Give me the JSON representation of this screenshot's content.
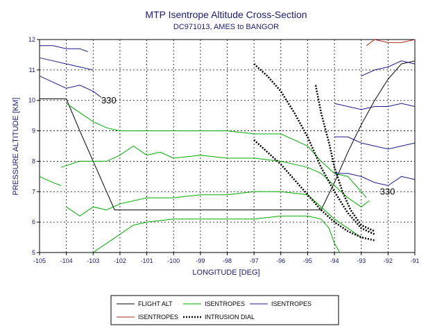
{
  "chart_data": {
    "type": "line",
    "title": "MTP Isentrope Altitude Cross-Section",
    "subtitle": "DC971013, AMES to BANGOR",
    "xlabel": "LONGITUDE [DEG]",
    "ylabel": "PRESSURE ALTITUDE [KM]",
    "xlim": [
      -105,
      -91
    ],
    "ylim": [
      5,
      12
    ],
    "xticks": [
      "-105",
      "-104",
      "-103",
      "-102",
      "-101",
      "-100",
      "-99",
      "-98",
      "-97",
      "-96",
      "-95",
      "-94",
      "-93",
      "-92",
      "-91"
    ],
    "yticks": [
      "5",
      "6",
      "7",
      "8",
      "9",
      "10",
      "11",
      "12"
    ],
    "grid": true,
    "legend_position": "bottom",
    "annotations": [
      {
        "text": "330",
        "x": -102.7,
        "y": 9.9
      },
      {
        "text": "330",
        "x": -92.3,
        "y": 6.9
      }
    ],
    "series": [
      {
        "name": "FLIGHT ALT",
        "color": "#000000",
        "style": "solid",
        "segments": [
          [
            [
              -105,
              10.05
            ],
            [
              -104,
              10.05
            ],
            [
              -103.5,
              9.0
            ],
            [
              -103,
              8.0
            ],
            [
              -102.5,
              7.0
            ],
            [
              -102.2,
              6.4
            ],
            [
              -101,
              6.4
            ],
            [
              -99,
              6.4
            ],
            [
              -97,
              6.4
            ],
            [
              -95,
              6.4
            ],
            [
              -94.5,
              6.4
            ],
            [
              -94,
              7.3
            ],
            [
              -93.5,
              8.3
            ],
            [
              -93,
              9.2
            ],
            [
              -92.5,
              10.0
            ],
            [
              -92,
              10.7
            ],
            [
              -91.5,
              11.2
            ],
            [
              -91,
              11.3
            ]
          ]
        ]
      },
      {
        "name": "ISENTROPES",
        "color": "#00aa00",
        "style": "solid",
        "segments": [
          [
            [
              -104,
              9.9
            ],
            [
              -103.5,
              9.6
            ],
            [
              -103,
              9.3
            ],
            [
              -102.5,
              9.1
            ],
            [
              -102,
              9.0
            ],
            [
              -101,
              9.0
            ],
            [
              -100,
              9.0
            ],
            [
              -99,
              9.0
            ],
            [
              -98,
              9.0
            ],
            [
              -97,
              8.9
            ],
            [
              -96,
              8.9
            ],
            [
              -95.5,
              8.7
            ],
            [
              -95,
              8.5
            ],
            [
              -94.5,
              8.0
            ],
            [
              -94,
              7.6
            ],
            [
              -93.5,
              7.5
            ],
            [
              -93,
              7.0
            ],
            [
              -92.8,
              6.8
            ]
          ],
          [
            [
              -104.2,
              7.8
            ],
            [
              -103.5,
              8.0
            ],
            [
              -103,
              8.0
            ],
            [
              -102.5,
              8.0
            ],
            [
              -102,
              8.2
            ],
            [
              -101.5,
              8.5
            ],
            [
              -101,
              8.2
            ],
            [
              -100.5,
              8.3
            ],
            [
              -100,
              8.1
            ],
            [
              -99,
              8.2
            ],
            [
              -98,
              8.1
            ],
            [
              -97,
              8.1
            ],
            [
              -96,
              8.0
            ],
            [
              -95.5,
              7.9
            ],
            [
              -95,
              7.8
            ],
            [
              -94.5,
              7.6
            ],
            [
              -94,
              7.2
            ],
            [
              -93.5,
              6.8
            ],
            [
              -93,
              6.5
            ],
            [
              -92.7,
              6.7
            ]
          ],
          [
            [
              -105,
              7.5
            ],
            [
              -104.5,
              7.3
            ],
            [
              -104.2,
              7.2
            ]
          ],
          [
            [
              -104,
              6.5
            ],
            [
              -103.5,
              6.2
            ],
            [
              -103,
              6.5
            ],
            [
              -102.5,
              6.4
            ],
            [
              -102,
              6.6
            ],
            [
              -101,
              6.8
            ],
            [
              -100,
              6.8
            ],
            [
              -99,
              6.9
            ],
            [
              -98,
              6.9
            ],
            [
              -97,
              7.0
            ],
            [
              -96,
              7.0
            ],
            [
              -95,
              6.9
            ],
            [
              -94.5,
              6.5
            ],
            [
              -94,
              6.1
            ],
            [
              -93.5,
              5.8
            ],
            [
              -93,
              5.5
            ]
          ],
          [
            [
              -103,
              5.0
            ],
            [
              -102.5,
              5.3
            ],
            [
              -102,
              5.6
            ],
            [
              -101.5,
              5.9
            ],
            [
              -101,
              6.0
            ],
            [
              -100,
              6.1
            ],
            [
              -99,
              6.1
            ],
            [
              -98,
              6.1
            ],
            [
              -97,
              6.1
            ],
            [
              -96,
              6.2
            ],
            [
              -95,
              6.2
            ],
            [
              -94.5,
              6.1
            ],
            [
              -94.2,
              5.8
            ],
            [
              -94,
              5.3
            ],
            [
              -93.8,
              5.0
            ]
          ]
        ]
      },
      {
        "name": "ISENTROPES",
        "color": "#1a1a8c",
        "style": "solid",
        "segments": [
          [
            [
              -105,
              11.8
            ],
            [
              -104.5,
              11.8
            ],
            [
              -104,
              11.7
            ],
            [
              -103.5,
              11.7
            ],
            [
              -103.2,
              11.6
            ]
          ],
          [
            [
              -105,
              11.4
            ],
            [
              -104.5,
              11.3
            ],
            [
              -104,
              11.2
            ],
            [
              -103.5,
              11.1
            ],
            [
              -103,
              11.0
            ]
          ],
          [
            [
              -105,
              10.8
            ],
            [
              -104.5,
              10.6
            ],
            [
              -104,
              10.4
            ],
            [
              -103.5,
              10.5
            ],
            [
              -103,
              10.3
            ],
            [
              -102.7,
              10.1
            ]
          ],
          [
            [
              -93,
              10.8
            ],
            [
              -92.5,
              11.0
            ],
            [
              -92,
              11.1
            ],
            [
              -91.5,
              11.3
            ],
            [
              -91,
              11.2
            ]
          ],
          [
            [
              -94,
              9.9
            ],
            [
              -93.5,
              9.8
            ],
            [
              -93,
              9.7
            ],
            [
              -92.5,
              9.8
            ],
            [
              -92,
              9.8
            ],
            [
              -91.5,
              9.9
            ],
            [
              -91,
              9.8
            ]
          ],
          [
            [
              -94,
              8.8
            ],
            [
              -93.5,
              8.8
            ],
            [
              -93,
              8.6
            ],
            [
              -92.5,
              8.5
            ],
            [
              -92,
              8.4
            ],
            [
              -91.5,
              8.5
            ],
            [
              -91,
              8.6
            ]
          ],
          [
            [
              -94,
              7.6
            ],
            [
              -93.5,
              7.6
            ],
            [
              -93,
              7.5
            ],
            [
              -92.5,
              7.3
            ],
            [
              -92,
              7.2
            ],
            [
              -91.5,
              7.5
            ],
            [
              -91,
              7.4
            ]
          ]
        ]
      },
      {
        "name": "ISENTROPES",
        "color": "#aa2a1a",
        "style": "solid",
        "segments": [
          [
            [
              -92.8,
              11.8
            ],
            [
              -92.5,
              12.0
            ],
            [
              -92,
              11.9
            ],
            [
              -91.5,
              11.9
            ],
            [
              -91,
              12.0
            ]
          ]
        ]
      },
      {
        "name": "INTRUSION DIAL",
        "color": "#000000",
        "style": "dotted",
        "segments": [
          [
            [
              -97,
              11.2
            ],
            [
              -96.5,
              10.8
            ],
            [
              -96,
              10.3
            ],
            [
              -95.5,
              9.6
            ],
            [
              -95,
              8.8
            ],
            [
              -94.5,
              7.8
            ],
            [
              -94,
              7.0
            ],
            [
              -93.5,
              6.3
            ],
            [
              -93,
              5.8
            ],
            [
              -92.5,
              5.6
            ]
          ],
          [
            [
              -97,
              8.7
            ],
            [
              -96.5,
              8.3
            ],
            [
              -96,
              7.9
            ],
            [
              -95.5,
              7.4
            ],
            [
              -95,
              6.9
            ],
            [
              -94.5,
              6.4
            ],
            [
              -94,
              6.0
            ],
            [
              -93.5,
              5.7
            ],
            [
              -93,
              5.5
            ],
            [
              -92.5,
              5.4
            ]
          ],
          [
            [
              -94.7,
              10.5
            ],
            [
              -94.5,
              9.6
            ],
            [
              -94.2,
              8.6
            ],
            [
              -94,
              7.8
            ],
            [
              -93.7,
              7.0
            ],
            [
              -93.4,
              6.4
            ],
            [
              -93,
              5.9
            ],
            [
              -92.5,
              5.7
            ]
          ]
        ]
      }
    ],
    "legend": [
      {
        "label": "FLIGHT ALT",
        "color": "#000000",
        "style": "solid"
      },
      {
        "label": "ISENTROPES",
        "color": "#00aa00",
        "style": "solid"
      },
      {
        "label": "ISENTROPES",
        "color": "#1a1a8c",
        "style": "solid"
      },
      {
        "label": "ISENTROPES",
        "color": "#aa2a1a",
        "style": "solid"
      },
      {
        "label": "INTRUSION DIAL",
        "color": "#000000",
        "style": "dotted"
      }
    ]
  }
}
